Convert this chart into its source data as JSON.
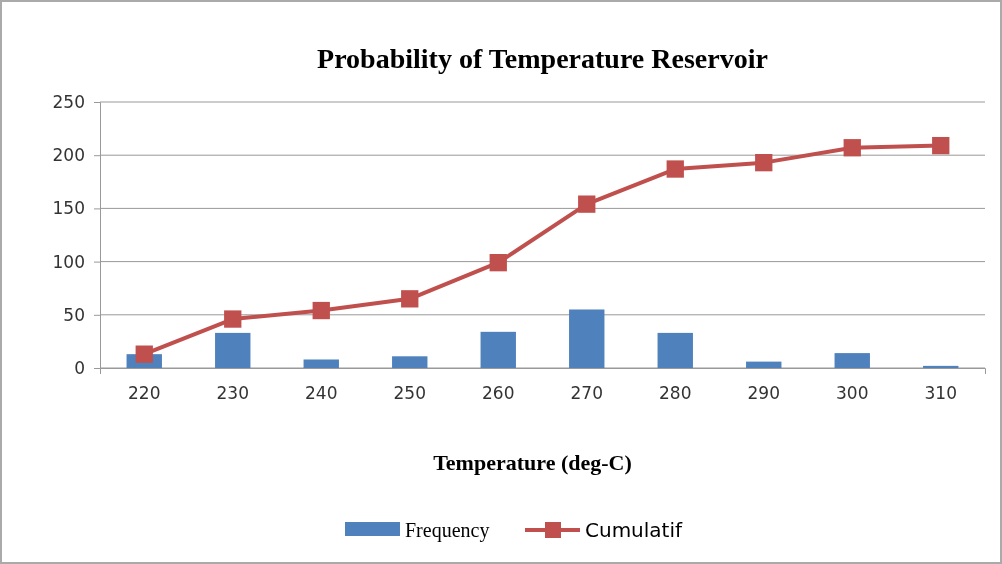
{
  "chart_data": {
    "type": "bar",
    "title": "Probability of Temperature Reservoir",
    "xlabel": "Temperature (deg-C)",
    "categories": [
      "220",
      "230",
      "240",
      "250",
      "260",
      "270",
      "280",
      "290",
      "300",
      "310"
    ],
    "series": [
      {
        "name": "Frequency",
        "color": "#4f81bd",
        "values": [
          13,
          33,
          8,
          11,
          34,
          55,
          33,
          6,
          14,
          2
        ]
      },
      {
        "name": "Cumulatif",
        "type": "line",
        "color": "#c0504d",
        "marker": "square",
        "values": [
          13,
          46,
          54,
          65,
          99,
          154,
          187,
          193,
          207,
          209
        ]
      }
    ],
    "ylim": [
      0,
      250
    ],
    "yticks": [
      0,
      50,
      100,
      150,
      200,
      250
    ],
    "grid": "y",
    "legend": "bottom"
  }
}
